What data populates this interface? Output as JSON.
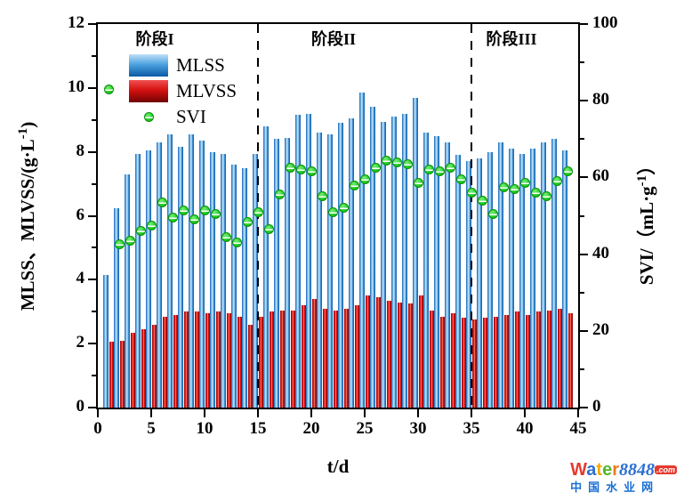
{
  "chart_data": {
    "type": "bar",
    "subtype": "grouped bars with overlaid scatter on secondary axis",
    "title": "",
    "xlabel": "t/d",
    "x_range": [
      0,
      45
    ],
    "x_ticks": [
      0,
      5,
      10,
      15,
      20,
      25,
      30,
      35,
      40,
      45
    ],
    "left_axis": {
      "label": "MLSS、MLVSS/(g·L⁻¹)",
      "range": [
        0,
        12
      ],
      "ticks": [
        0,
        2,
        4,
        6,
        8,
        10,
        12
      ],
      "minor_ticks": [
        1,
        3,
        5,
        7,
        9,
        11
      ]
    },
    "right_axis": {
      "label": "SVI/（mL·g⁻¹）",
      "range": [
        0,
        100
      ],
      "ticks": [
        0,
        20,
        40,
        60,
        80,
        100
      ],
      "minor_ticks": [
        10,
        30,
        50,
        70,
        90
      ]
    },
    "grid": false,
    "legend_position": "upper-left inside plot",
    "x": [
      1,
      2,
      3,
      4,
      5,
      6,
      7,
      8,
      9,
      10,
      11,
      12,
      13,
      14,
      15,
      16,
      17,
      18,
      19,
      20,
      21,
      22,
      23,
      24,
      25,
      26,
      27,
      28,
      29,
      30,
      31,
      32,
      33,
      34,
      35,
      36,
      37,
      38,
      39,
      40,
      41,
      42,
      43,
      44
    ],
    "series": [
      {
        "name": "MLSS",
        "type": "bar",
        "axis": "left",
        "color": "#1f7ec9",
        "values": [
          4.15,
          6.25,
          7.3,
          7.95,
          8.05,
          8.3,
          8.55,
          8.15,
          8.55,
          8.35,
          8.0,
          7.95,
          7.6,
          7.5,
          7.95,
          8.8,
          8.4,
          8.45,
          9.15,
          9.2,
          8.6,
          8.55,
          8.9,
          9.05,
          9.85,
          9.4,
          8.95,
          9.1,
          9.2,
          9.7,
          8.6,
          8.5,
          8.3,
          7.9,
          7.7,
          7.8,
          8.0,
          8.3,
          8.1,
          7.95,
          8.1,
          8.3,
          8.4,
          8.05
        ]
      },
      {
        "name": "MLVSS",
        "type": "bar",
        "axis": "left",
        "color": "#d40000",
        "values": [
          2.05,
          2.1,
          2.35,
          2.45,
          2.6,
          2.85,
          2.9,
          3.0,
          3.0,
          2.95,
          3.0,
          2.95,
          2.85,
          2.6,
          2.85,
          3.0,
          3.05,
          3.05,
          3.2,
          3.4,
          3.1,
          3.05,
          3.1,
          3.2,
          3.5,
          3.45,
          3.35,
          3.3,
          3.25,
          3.5,
          3.05,
          2.85,
          2.95,
          2.8,
          2.75,
          2.8,
          2.85,
          2.9,
          3.0,
          2.9,
          3.0,
          3.05,
          3.1,
          2.95
        ]
      },
      {
        "name": "SVI",
        "type": "scatter",
        "axis": "right",
        "color": "#25cc25",
        "values": [
          83,
          42.5,
          43.5,
          46,
          47.5,
          53.5,
          49.5,
          51.5,
          49,
          51.5,
          50.5,
          44.5,
          43,
          48.5,
          51,
          46.5,
          55.5,
          62.5,
          62,
          61.5,
          55,
          51,
          52,
          58,
          59.5,
          62.5,
          64.5,
          64,
          63.5,
          58.5,
          62,
          61.5,
          62.5,
          59.5,
          56,
          54,
          50.5,
          57.5,
          57,
          58.5,
          56,
          55,
          59,
          61.5
        ]
      }
    ],
    "phase_dividers_x": [
      15,
      35
    ],
    "phases": [
      {
        "label": "阶段I",
        "from": 0,
        "to": 15
      },
      {
        "label": "阶段II",
        "from": 15,
        "to": 35
      },
      {
        "label": "阶段III",
        "from": 35,
        "to": 45
      }
    ]
  },
  "axes_text": {
    "left_prefix": "MLSS、MLVSS/(g·L",
    "left_sup": "-1",
    "left_suffix": ")",
    "right_prefix": "SVI/（mL·g",
    "right_sup": "-1",
    "right_suffix": "）",
    "bottom": "t/d"
  },
  "legend": {
    "items": [
      {
        "label": "MLSS",
        "swatch": "blue-gradient-rect"
      },
      {
        "label": "MLVSS",
        "swatch": "red-gradient-rect"
      },
      {
        "label": "SVI",
        "swatch": "green-ball"
      }
    ]
  },
  "watermark": {
    "word_letters": [
      {
        "ch": "W",
        "color": "#e53a2e"
      },
      {
        "ch": "a",
        "color": "#2b6fd4"
      },
      {
        "ch": "t",
        "color": "#f5a800"
      },
      {
        "ch": "e",
        "color": "#58b531"
      },
      {
        "ch": "r",
        "color": "#f07820"
      }
    ],
    "number": "8848",
    "number_color": "#2b6fd4",
    "tld": ".com",
    "line2": "中国水业网"
  }
}
